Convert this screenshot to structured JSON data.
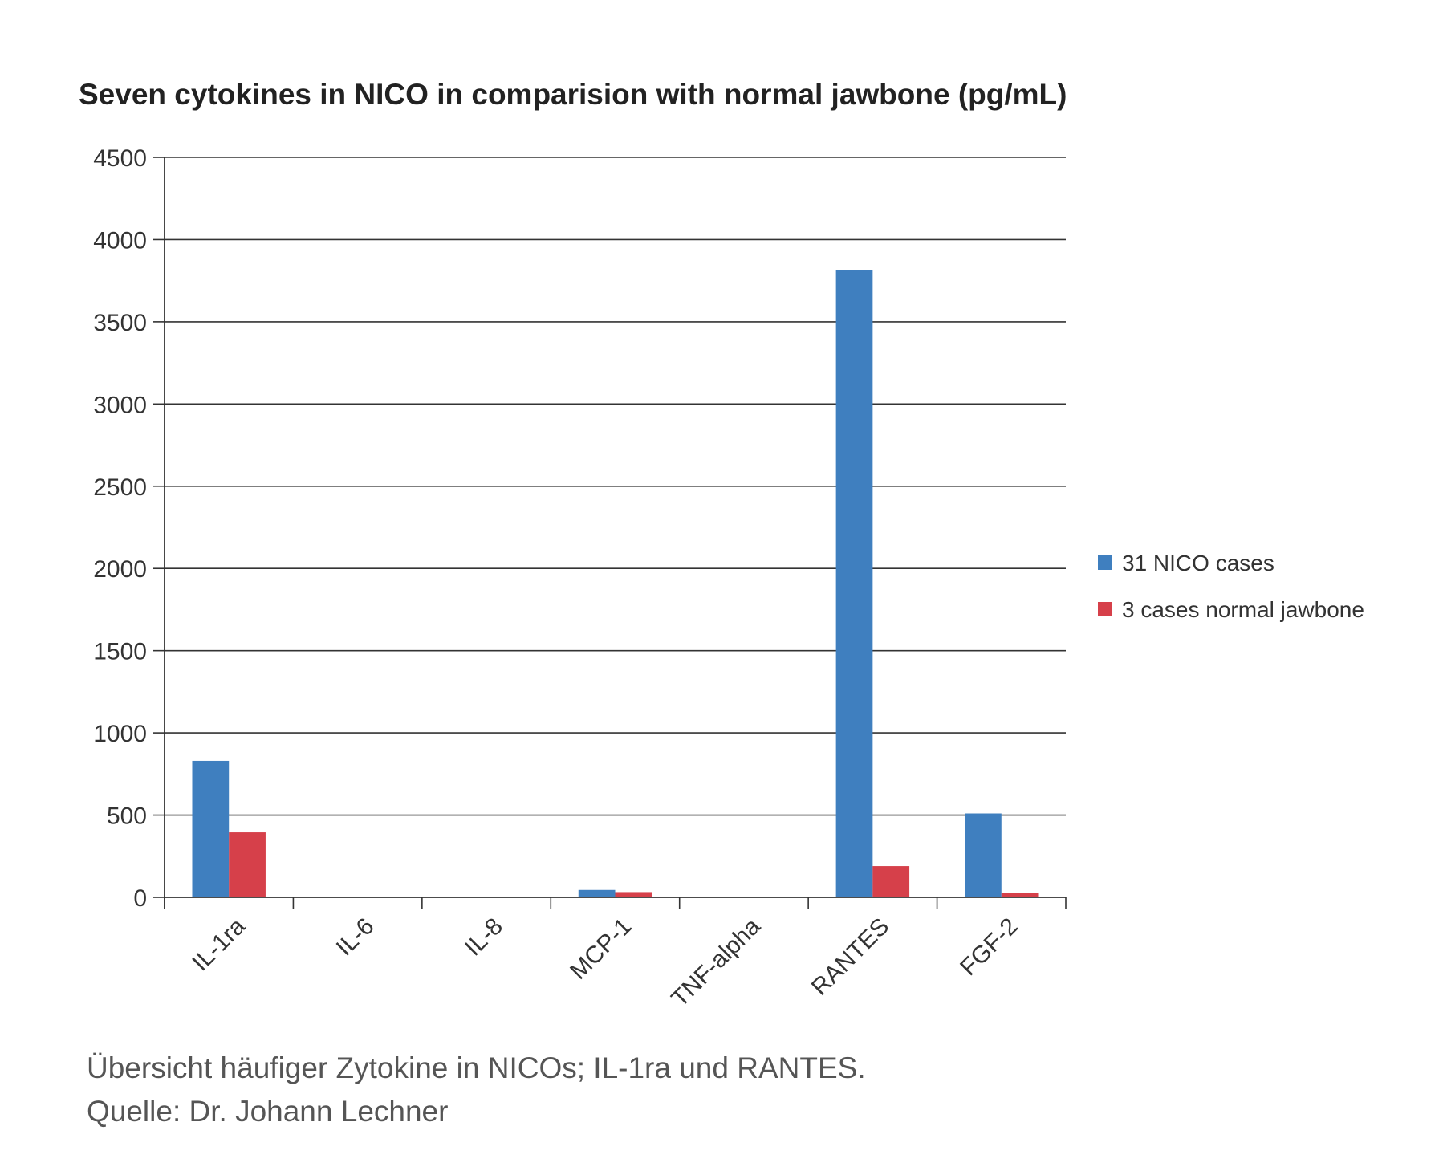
{
  "chart_data": {
    "type": "bar",
    "title": "Seven cytokines in NICO in comparision with normal jawbone (pg/mL)",
    "categories": [
      "IL-1ra",
      "IL-6",
      "IL-8",
      "MCP-1",
      "TNF-alpha",
      "RANTES",
      "FGF-2"
    ],
    "series": [
      {
        "name": "31 NICO cases",
        "color": "#3f7fbf",
        "values": [
          830,
          0,
          0,
          45,
          0,
          3815,
          510
        ]
      },
      {
        "name": "3 cases normal jawbone",
        "color": "#d6404a",
        "values": [
          395,
          0,
          0,
          32,
          0,
          190,
          25
        ]
      }
    ],
    "ylim": [
      0,
      4500
    ],
    "yticks": [
      0,
      500,
      1000,
      1500,
      2000,
      2500,
      3000,
      3500,
      4000,
      4500
    ],
    "xlabel": "",
    "ylabel": "",
    "grid": true,
    "legend_position": "right"
  },
  "caption": {
    "line1": "Übersicht häufiger Zytokine in NICOs; IL-1ra und RANTES.",
    "line2": "Quelle: Dr. Johann Lechner"
  }
}
